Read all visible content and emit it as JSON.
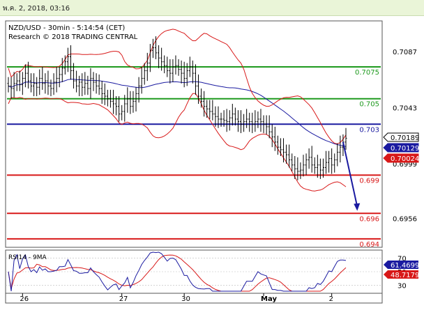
{
  "header": {
    "timestamp": "พ.ค. 2, 2018, 03:16"
  },
  "chart_data": {
    "type": "candlestick",
    "title": "NZD/USD - 30min - 5:14:54 (CET)",
    "subtitle": "Research © 2018 TRADING CENTRAL",
    "ylim": [
      0.6935,
      0.711
    ],
    "y_ticks": [
      0.7087,
      0.7043,
      0.6999,
      0.6956
    ],
    "x_ticks": [
      "26",
      "27",
      "30",
      "May",
      "2"
    ],
    "x_tick_index": [
      5,
      40,
      62,
      90,
      114
    ],
    "candle_count": 120,
    "levels": [
      {
        "value": 0.7075,
        "label": "0.7075",
        "color": "#1e9a1e"
      },
      {
        "value": 0.705,
        "label": "0.705",
        "color": "#1e9a1e"
      },
      {
        "value": 0.703,
        "label": "0.703",
        "color": "#1a1aa0"
      },
      {
        "value": 0.699,
        "label": "0.699",
        "color": "#d81818"
      },
      {
        "value": 0.696,
        "label": "0.696",
        "color": "#d81818"
      },
      {
        "value": 0.694,
        "label": "0.694",
        "color": "#d81818"
      }
    ],
    "price_tags": [
      {
        "value": "0.70189",
        "bg": "#ffffff",
        "fg": "#000000"
      },
      {
        "value": "0.70129",
        "bg": "#1a1aa0",
        "fg": "#ffffff"
      },
      {
        "value": "0.70024",
        "bg": "#d81818",
        "fg": "#ffffff"
      }
    ],
    "close_series": [
      0.706,
      0.7058,
      0.7062,
      0.7064,
      0.7061,
      0.7066,
      0.707,
      0.7064,
      0.706,
      0.7062,
      0.7059,
      0.7066,
      0.7062,
      0.7064,
      0.706,
      0.7058,
      0.7063,
      0.7066,
      0.7069,
      0.7074,
      0.7079,
      0.7083,
      0.7072,
      0.7064,
      0.706,
      0.7063,
      0.7059,
      0.7062,
      0.7058,
      0.7066,
      0.7063,
      0.706,
      0.7058,
      0.7054,
      0.7052,
      0.705,
      0.7048,
      0.7046,
      0.7044,
      0.7038,
      0.704,
      0.7046,
      0.705,
      0.7044,
      0.7048,
      0.7054,
      0.706,
      0.7066,
      0.7072,
      0.7078,
      0.7088,
      0.709,
      0.7086,
      0.7082,
      0.7079,
      0.7076,
      0.7072,
      0.707,
      0.7075,
      0.7076,
      0.7073,
      0.707,
      0.7066,
      0.7072,
      0.7075,
      0.707,
      0.706,
      0.7052,
      0.7048,
      0.7044,
      0.7042,
      0.704,
      0.7038,
      0.7036,
      0.7034,
      0.7034,
      0.7033,
      0.7032,
      0.7035,
      0.7038,
      0.7034,
      0.7032,
      0.703,
      0.7032,
      0.7034,
      0.7032,
      0.703,
      0.7032,
      0.7034,
      0.7032,
      0.703,
      0.7028,
      0.7024,
      0.702,
      0.7016,
      0.7012,
      0.701,
      0.7008,
      0.7006,
      0.7002,
      0.6998,
      0.6995,
      0.6993,
      0.6994,
      0.6998,
      0.7002,
      0.7004,
      0.6998,
      0.6996,
      0.6998,
      0.6994,
      0.6996,
      0.7,
      0.7003,
      0.6998,
      0.7002,
      0.7008,
      0.7012,
      0.7016,
      0.7019
    ],
    "sma_upper_label": "",
    "rsi": {
      "label": "RSI14 - 9MA",
      "ylim": [
        20,
        80
      ],
      "y_ticks": [
        70,
        50,
        30
      ],
      "rsi_value": "61.4699",
      "ma_value": "48.7179",
      "rsi_color": "#1a1aa0",
      "ma_color": "#d81818"
    },
    "arrow": {
      "from_index": 118,
      "from_value": 0.7016,
      "to_index": 123,
      "to_value": 0.6962,
      "color": "#1a1aa0"
    }
  }
}
